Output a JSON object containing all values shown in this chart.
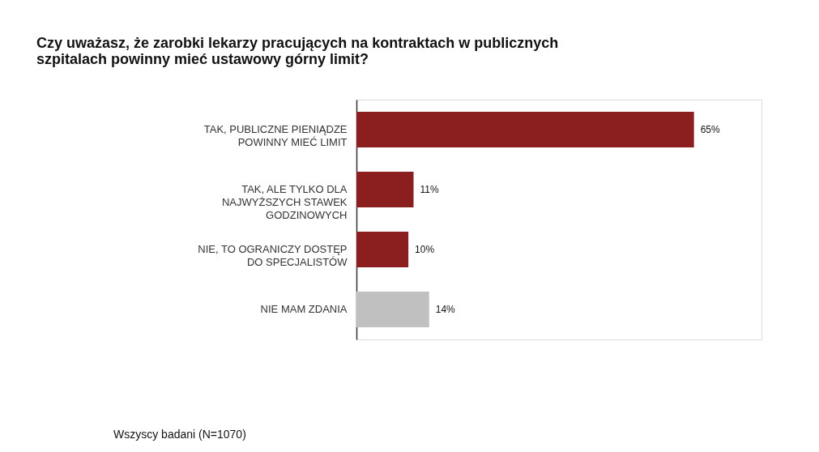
{
  "chart_data": {
    "type": "bar",
    "orientation": "horizontal",
    "title": "Czy uważasz, że zarobki lekarzy pracujących na kontraktach w publicznych szpitalach powinny mieć ustawowy górny limit?",
    "categories": [
      "TAK, PUBLICZNE PIENIĄDZE POWINNY MIEĆ LIMIT",
      "TAK, ALE TYLKO DLA NAJWYŻSZYCH STAWEK GODZINOWYCH",
      "NIE, TO OGRANICZY DOSTĘP DO SPECJALISTÓW",
      "NIE MAM ZDANIA"
    ],
    "values": [
      65,
      11,
      10,
      14
    ],
    "colors": [
      "#8b1e1e",
      "#8b1e1e",
      "#8b1e1e",
      "#c0c0c0"
    ],
    "value_labels": [
      "65%",
      "11%",
      "10%",
      "14%"
    ],
    "annotations": [
      "Wszyscy badani (N=1070)"
    ],
    "relative": false
  }
}
